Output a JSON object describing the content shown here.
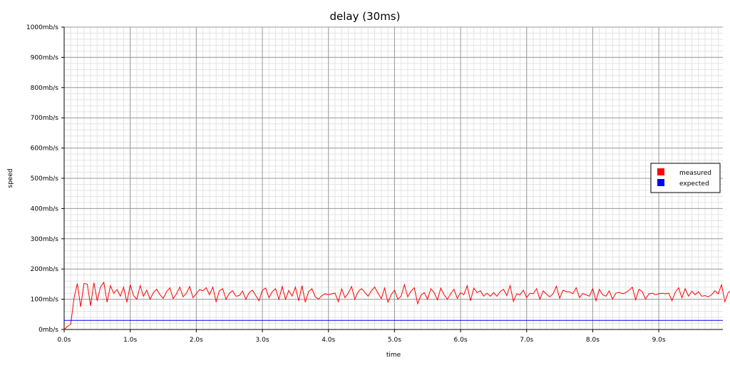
{
  "chart_data": {
    "type": "line",
    "title": "delay (30ms)",
    "xlabel": "time",
    "ylabel": "speed",
    "xlim": [
      0,
      9.97
    ],
    "ylim": [
      0,
      1000
    ],
    "x_ticks": [
      0,
      1,
      2,
      3,
      4,
      5,
      6,
      7,
      8,
      9
    ],
    "x_tick_labels": [
      "0.0s",
      "1.0s",
      "2.0s",
      "3.0s",
      "4.0s",
      "5.0s",
      "6.0s",
      "7.0s",
      "8.0s",
      "9.0s"
    ],
    "y_ticks": [
      0,
      100,
      200,
      300,
      400,
      500,
      600,
      700,
      800,
      900,
      1000
    ],
    "y_tick_labels": [
      "0mb/s",
      "100mb/s",
      "200mb/s",
      "300mb/s",
      "400mb/s",
      "500mb/s",
      "600mb/s",
      "700mb/s",
      "800mb/s",
      "900mb/s",
      "1000mb/s"
    ],
    "grid": true,
    "legend_position": "right",
    "x_step": 0.05,
    "series": [
      {
        "name": "measured",
        "color": "#ff0000",
        "values": [
          0,
          10,
          18,
          105,
          152,
          75,
          152,
          150,
          78,
          155,
          95,
          140,
          156,
          90,
          145,
          120,
          132,
          110,
          140,
          90,
          148,
          112,
          100,
          145,
          110,
          130,
          100,
          122,
          133,
          115,
          103,
          125,
          138,
          102,
          118,
          140,
          108,
          120,
          142,
          105,
          118,
          132,
          128,
          138,
          115,
          140,
          92,
          128,
          135,
          100,
          120,
          128,
          110,
          112,
          127,
          100,
          122,
          130,
          112,
          95,
          130,
          137,
          105,
          125,
          135,
          100,
          142,
          100,
          129,
          110,
          140,
          95,
          145,
          90,
          125,
          135,
          108,
          100,
          112,
          118,
          115,
          118,
          120,
          92,
          135,
          105,
          120,
          142,
          100,
          125,
          135,
          123,
          110,
          128,
          140,
          120,
          102,
          137,
          90,
          115,
          130,
          100,
          110,
          148,
          108,
          127,
          138,
          85,
          113,
          122,
          100,
          135,
          122,
          98,
          137,
          115,
          100,
          118,
          133,
          103,
          122,
          115,
          145,
          95,
          137,
          122,
          128,
          110,
          120,
          110,
          122,
          110,
          125,
          133,
          112,
          145,
          93,
          118,
          115,
          130,
          105,
          120,
          118,
          135,
          100,
          128,
          117,
          108,
          118,
          143,
          103,
          130,
          125,
          125,
          118,
          138,
          105,
          119,
          115,
          110,
          135,
          95,
          133,
          115,
          110,
          128,
          100,
          120,
          123,
          118,
          122,
          130,
          140,
          98,
          133,
          125,
          100,
          118,
          120,
          115,
          118,
          120,
          118,
          120,
          95,
          123,
          138,
          105,
          135,
          110,
          127,
          115,
          125,
          110,
          112,
          108,
          115,
          128,
          118,
          148,
          92,
          122,
          130,
          110,
          120,
          108,
          117,
          123,
          128,
          110,
          97,
          125,
          137,
          105,
          120,
          130,
          95,
          120,
          132,
          110,
          118,
          117
        ]
      },
      {
        "name": "expected",
        "color": "#0000ff",
        "values": [
          30,
          30
        ]
      }
    ]
  }
}
